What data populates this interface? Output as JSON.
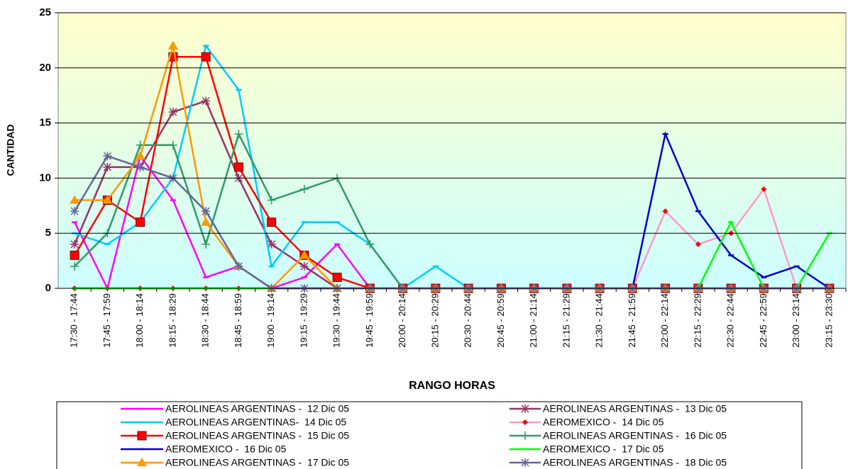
{
  "chart_data": {
    "type": "line",
    "x_label": "RANGO HORAS",
    "y_label": "CANTIDAD",
    "categories": [
      "17:30 - 17:44",
      "17:45 - 17:59",
      "18:00 - 18:14",
      "18:15 - 18:29",
      "18:30 - 18:44",
      "18:45 - 18:59",
      "19:00 - 19:14",
      "19:15 - 19:29",
      "19:30 - 19:44",
      "19:45 - 19:59",
      "20:00 - 20:14",
      "20:15 - 20:29",
      "20:30 - 20:44",
      "20:45 - 20:59",
      "21:00 - 21:14",
      "21:15 - 21:29",
      "21:30 - 21:44",
      "21:45 - 21:59",
      "22:00 - 22:14",
      "22:15 - 22:29",
      "22:30 - 22:44",
      "22:45 - 22:59",
      "23:00 - 23:14",
      "23:15 - 23:30"
    ],
    "ylim": [
      0,
      25
    ],
    "yticks": [
      0,
      5,
      10,
      15,
      20,
      25
    ],
    "grid": true,
    "series": [
      {
        "name": "AEROLINEAS ARGENTINAS -  12 Dic 05",
        "color": "#ff00ff",
        "marker": "dash",
        "values": [
          6,
          0,
          12,
          8,
          1,
          2,
          0,
          1,
          4,
          0,
          0,
          0,
          0,
          0,
          0,
          0,
          0,
          0,
          0,
          0,
          0,
          0,
          0,
          0
        ]
      },
      {
        "name": "AEROLINEAS ARGENTINAS -  13 Dic 05",
        "color": "#993366",
        "marker": "asterisk",
        "values": [
          4,
          11,
          11,
          16,
          17,
          10,
          4,
          2,
          0,
          0,
          0,
          0,
          0,
          0,
          0,
          0,
          0,
          0,
          0,
          0,
          0,
          0,
          0,
          0
        ]
      },
      {
        "name": "AEROLINEAS ARGENTINAS-  14 Dic 05",
        "color": "#00ccff",
        "marker": "dash",
        "values": [
          5,
          4,
          6,
          10,
          22,
          18,
          2,
          6,
          6,
          4,
          0,
          2,
          0,
          0,
          0,
          0,
          0,
          0,
          0,
          0,
          0,
          0,
          0,
          0
        ]
      },
      {
        "name": "AEROMEXICO -  14 Dic 05",
        "color": "#ff99cc",
        "marker": "diamond",
        "values": [
          0,
          0,
          0,
          0,
          0,
          0,
          0,
          0,
          0,
          0,
          0,
          0,
          0,
          0,
          0,
          0,
          0,
          0,
          7,
          4,
          5,
          9,
          0,
          0
        ]
      },
      {
        "name": "AEROLINEAS ARGENTINAS -  15 Dic 05",
        "color": "#ff0000",
        "marker": "square",
        "values": [
          3,
          8,
          6,
          21,
          21,
          11,
          6,
          3,
          1,
          0,
          0,
          0,
          0,
          0,
          0,
          0,
          0,
          0,
          0,
          0,
          0,
          0,
          0,
          0
        ]
      },
      {
        "name": "AEROLINEAS ARGENTINAS -  16 Dic 05",
        "color": "#339966",
        "marker": "plus",
        "values": [
          2,
          5,
          13,
          13,
          4,
          14,
          8,
          9,
          10,
          4,
          0,
          0,
          0,
          0,
          0,
          0,
          0,
          0,
          0,
          0,
          0,
          0,
          0,
          0
        ]
      },
      {
        "name": "AEROMEXICO -  16 Dic 05",
        "color": "#0000cc",
        "marker": "dash",
        "values": [
          0,
          0,
          0,
          0,
          0,
          0,
          0,
          0,
          0,
          0,
          0,
          0,
          0,
          0,
          0,
          0,
          0,
          0,
          14,
          7,
          3,
          1,
          2,
          0
        ]
      },
      {
        "name": "AEROMEXICO -  17 Dic 05",
        "color": "#00ff00",
        "marker": "dash",
        "values": [
          0,
          0,
          0,
          0,
          0,
          0,
          0,
          0,
          0,
          0,
          0,
          0,
          0,
          0,
          0,
          0,
          0,
          0,
          0,
          0,
          6,
          0,
          0,
          5
        ]
      },
      {
        "name": "AEROLINEAS ARGENTINAS -  17 Dic 05",
        "color": "#ff9900",
        "marker": "triangle",
        "values": [
          8,
          8,
          12,
          22,
          6,
          2,
          0,
          3,
          0,
          0,
          0,
          0,
          0,
          0,
          0,
          0,
          0,
          0,
          0,
          0,
          0,
          0,
          0,
          0
        ]
      },
      {
        "name": "AEROLINEAS ARGENTINAS -  18 Dic 05",
        "color": "#666699",
        "marker": "asterisk",
        "values": [
          7,
          12,
          11,
          10,
          7,
          2,
          0,
          0,
          0,
          0,
          0,
          0,
          0,
          0,
          0,
          0,
          0,
          0,
          0,
          0,
          0,
          0,
          0,
          0
        ]
      }
    ]
  }
}
